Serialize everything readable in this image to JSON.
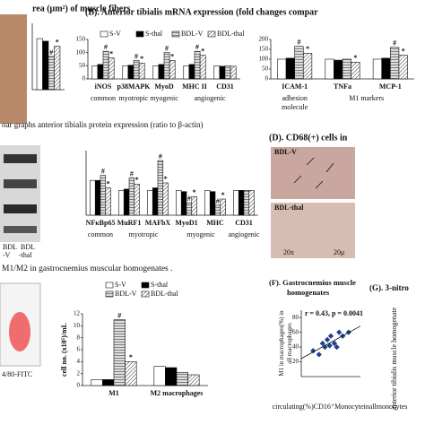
{
  "texts": {
    "panel_c_title": "oar graphs anterior tibialis protein expression (ratio to β-actin)",
    "panel_c_blot": [
      "BDL",
      "BDL",
      "-V",
      "-thal"
    ],
    "panel_d_title": "(D). CD68(+) cells in",
    "panel_d_labels": [
      "BDL-V",
      "BDL-thal",
      "20x",
      "20μ"
    ],
    "panel_e_title": "M1/M2 in gastrocnemius muscular homogenates .",
    "panel_e_flow": "4/80-FITC",
    "panel_g_title": "(G). 3-nitro",
    "panel_g_axis": "anterior tibialis muscle homogenate"
  },
  "chart_data": [
    {
      "type": "bar",
      "title": "rea (μm²) of muscle fibers",
      "categories": [
        null
      ],
      "ylim": [
        0,
        130
      ],
      "series": [
        {
          "color": "#ffffff",
          "hatch": null,
          "values": [
            100
          ]
        },
        {
          "color": "#000000",
          "hatch": null,
          "values": [
            95
          ]
        },
        {
          "color": "#bbbbbb",
          "hatch": "horizontal",
          "values": [
            65
          ],
          "marks": [
            "#"
          ]
        },
        {
          "color": "#ffffff",
          "hatch": "diagonal",
          "values": [
            85
          ],
          "marks": [
            "*"
          ]
        }
      ],
      "legend": false
    },
    {
      "type": "bar",
      "title": "(B). Anterior tibialis mRNA expression (fold changes compar",
      "categories": [
        "iNOS",
        "p38MAPK",
        "MyoD",
        "MHC II",
        "CD31"
      ],
      "groups": [
        {
          "label": "common",
          "from": 0,
          "to": 0
        },
        {
          "label": "myotropic",
          "from": 1,
          "to": 1
        },
        {
          "label": "myogenic",
          "from": 2,
          "to": 2
        },
        {
          "label": "angiogenic",
          "from": 3,
          "to": 4
        }
      ],
      "ylim": [
        0,
        150
      ],
      "yticks": [
        0,
        50,
        100,
        150
      ],
      "legend": true,
      "series": [
        {
          "name": "S-V",
          "color": "#ffffff",
          "hatch": null,
          "values": [
            50,
            50,
            50,
            50,
            50
          ]
        },
        {
          "name": "S-thal",
          "color": "#000000",
          "hatch": null,
          "values": [
            55,
            52,
            55,
            55,
            48
          ]
        },
        {
          "name": "BDL-V",
          "color": "#bbbbbb",
          "hatch": "horizontal",
          "values": [
            105,
            70,
            100,
            105,
            50
          ],
          "marks": [
            "#",
            "#",
            "#",
            "#",
            null
          ]
        },
        {
          "name": "BDL-thal",
          "color": "#ffffff",
          "hatch": "diagonal",
          "values": [
            80,
            60,
            70,
            90,
            48
          ],
          "marks": [
            "*",
            "*",
            "*",
            "*",
            null
          ]
        }
      ]
    },
    {
      "type": "bar",
      "categories": [
        "ICAM-1",
        "TNFa",
        "MCP-1"
      ],
      "groups": [
        {
          "label": "adhesion molecule",
          "from": 0,
          "to": 0
        },
        {
          "label": "M1 markers",
          "from": 1,
          "to": 2
        }
      ],
      "ylim": [
        0,
        200
      ],
      "yticks": [
        0,
        50,
        100,
        150,
        200
      ],
      "legend": false,
      "series": [
        {
          "color": "#ffffff",
          "hatch": null,
          "values": [
            100,
            100,
            100
          ]
        },
        {
          "color": "#000000",
          "hatch": null,
          "values": [
            105,
            95,
            105
          ]
        },
        {
          "color": "#bbbbbb",
          "hatch": "horizontal",
          "values": [
            165,
            100,
            160
          ],
          "marks": [
            "#",
            null,
            "#"
          ]
        },
        {
          "color": "#ffffff",
          "hatch": "diagonal",
          "values": [
            130,
            85,
            120
          ],
          "marks": [
            "*",
            "*",
            "*"
          ]
        }
      ]
    },
    {
      "type": "bar",
      "categories": [
        "NFκBp65",
        "MuRF1",
        "MAFbX",
        "MyoD1",
        "MHC",
        "CD31"
      ],
      "groups": [
        {
          "label": "common",
          "from": 0,
          "to": 0
        },
        {
          "label": "myotropic",
          "from": 1,
          "to": 2
        },
        {
          "label": "myogenic",
          "from": 3,
          "to": 4
        },
        {
          "label": "angiogenic",
          "from": 5,
          "to": 5
        }
      ],
      "ylim": [
        0,
        260
      ],
      "legend": false,
      "series": [
        {
          "color": "#ffffff",
          "hatch": null,
          "values": [
            140,
            100,
            100,
            100,
            100,
            100
          ]
        },
        {
          "color": "#000000",
          "hatch": null,
          "values": [
            140,
            105,
            110,
            95,
            95,
            100
          ]
        },
        {
          "color": "#bbbbbb",
          "hatch": "horizontal",
          "values": [
            160,
            150,
            220,
            50,
            40,
            100
          ],
          "marks": [
            "#",
            "#",
            "#",
            "#",
            "#",
            null
          ]
        },
        {
          "color": "#ffffff",
          "hatch": "diagonal",
          "values": [
            110,
            125,
            130,
            75,
            65,
            100
          ],
          "marks": [
            "*",
            "*",
            "*",
            "*",
            "*",
            null
          ]
        }
      ]
    },
    {
      "type": "bar",
      "categories": [
        "M1",
        "M2 macrophages"
      ],
      "y_label": "cell no. (x10⁵)/mL",
      "ylim": [
        0,
        12
      ],
      "yticks": [
        0,
        2,
        4,
        6,
        8,
        10,
        12
      ],
      "legend": true,
      "series": [
        {
          "name": "S-V",
          "color": "#ffffff",
          "hatch": null,
          "values": [
            1,
            3.2
          ]
        },
        {
          "name": "S-thal",
          "color": "#000000",
          "hatch": null,
          "values": [
            1,
            3
          ]
        },
        {
          "name": "BDL-V",
          "color": "#bbbbbb",
          "hatch": "horizontal",
          "values": [
            11,
            2.2
          ],
          "marks": [
            "#",
            null
          ]
        },
        {
          "name": "BDL-thal",
          "color": "#ffffff",
          "hatch": "diagonal",
          "values": [
            4,
            1.8
          ],
          "marks": [
            "*",
            null
          ]
        }
      ]
    },
    {
      "type": "scatter",
      "title": "(F). Gastrocnemius muscle homogenates",
      "annotation": "r = 0.43, p = 0.0041",
      "x_label": "circulating (%) CD16⁺ Monocyte in all monocytes",
      "y_label": "M1 in macrophages(%) in all macrophages",
      "xlim": [
        20,
        70
      ],
      "ylim": [
        0,
        90
      ],
      "yticks": [
        20,
        40,
        60,
        80
      ],
      "color": "#1f3f8f",
      "trendline": true,
      "x": [
        30,
        35,
        38,
        40,
        42,
        44,
        45,
        48,
        50,
        52,
        55,
        60
      ],
      "values": [
        35,
        30,
        45,
        40,
        50,
        42,
        55,
        45,
        40,
        60,
        55,
        60
      ]
    }
  ]
}
